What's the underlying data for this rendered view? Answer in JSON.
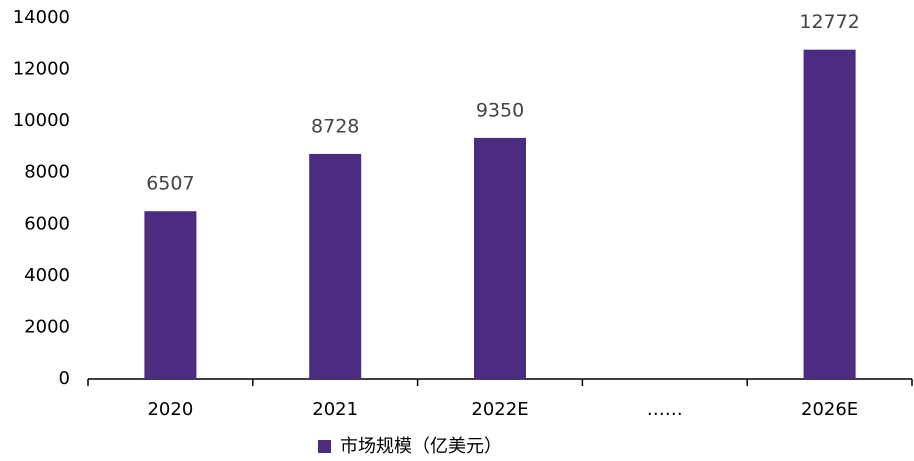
{
  "chart_data": {
    "type": "bar",
    "categories": [
      "2020",
      "2021",
      "2022E",
      "……",
      "2026E"
    ],
    "series": [
      {
        "name": "市场规模（亿美元）",
        "color": "#4b2c80",
        "values": [
          6507,
          8728,
          9350,
          null,
          12772
        ]
      }
    ],
    "ylim": [
      0,
      14000
    ],
    "yticks": [
      0,
      2000,
      4000,
      6000,
      8000,
      10000,
      12000,
      14000
    ],
    "grid": false,
    "legend": "bottom"
  }
}
